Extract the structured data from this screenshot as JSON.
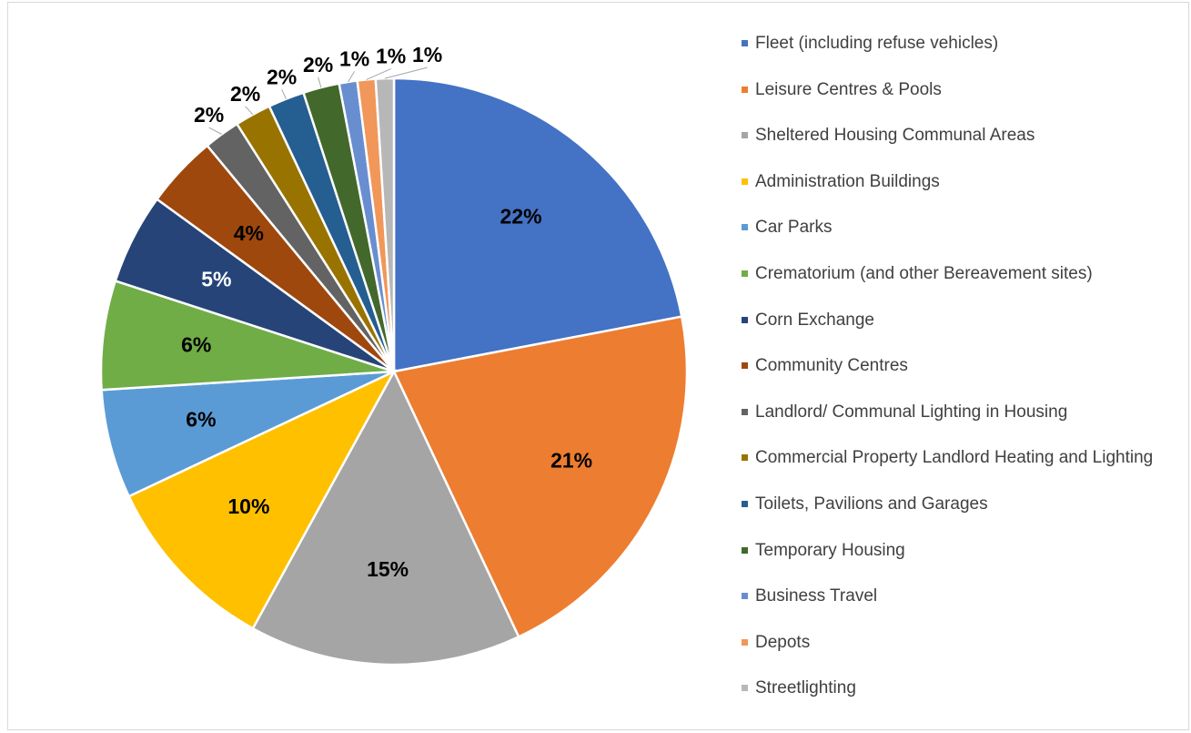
{
  "chart_data": {
    "type": "pie",
    "categories": [
      "Fleet (including refuse vehicles)",
      "Leisure Centres & Pools",
      "Sheltered Housing Communal Areas",
      "Administration Buildings",
      "Car Parks",
      "Crematorium (and other Bereavement sites)",
      "Corn Exchange",
      "Community Centres",
      "Landlord/ Communal Lighting in Housing",
      "Commercial Property Landlord Heating and Lighting",
      "Toilets, Pavilions and Garages",
      "Temporary Housing",
      "Business Travel",
      "Depots",
      "Streetlighting"
    ],
    "values": [
      22,
      21,
      15,
      10,
      6,
      6,
      5,
      4,
      2,
      2,
      2,
      2,
      1,
      1,
      1
    ],
    "value_labels": [
      "22%",
      "21%",
      "15%",
      "10%",
      "6%",
      "6%",
      "5%",
      "4%",
      "2%",
      "2%",
      "2%",
      "2%",
      "1%",
      "1%",
      "1%"
    ],
    "colors": [
      "#4472c4",
      "#ed7d31",
      "#a5a5a5",
      "#ffc000",
      "#5b9bd5",
      "#70ad47",
      "#264478",
      "#9e480e",
      "#636363",
      "#997300",
      "#255e91",
      "#43682b",
      "#698ed0",
      "#f1975a",
      "#b7b7b7"
    ],
    "legend": "right"
  }
}
